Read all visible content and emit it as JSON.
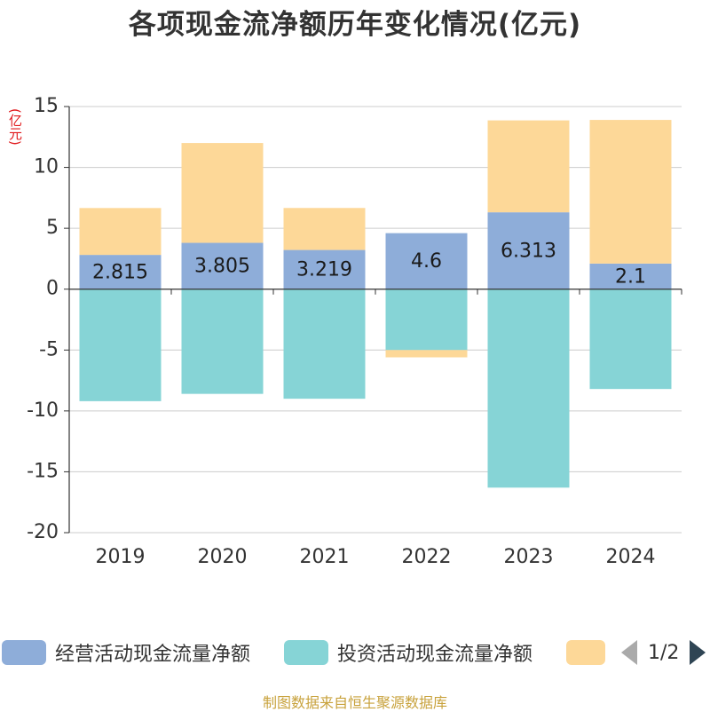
{
  "chart_data": {
    "type": "bar",
    "stacked": true,
    "title": "各项现金流净额历年变化情况(亿元)",
    "unit_label": "(亿元)",
    "categories": [
      "2019",
      "2020",
      "2021",
      "2022",
      "2023",
      "2024"
    ],
    "ylim": [
      -20,
      15
    ],
    "yticks": [
      15,
      10,
      5,
      0,
      -5,
      -10,
      -15,
      -20
    ],
    "grid": true,
    "legend_position": "bottom",
    "series": [
      {
        "name": "经营活动现金流量净额",
        "color": "#8eadd9",
        "values": [
          2.815,
          3.805,
          3.219,
          4.6,
          6.313,
          2.1
        ],
        "labels": [
          "2.815",
          "3.805",
          "3.219",
          "4.6",
          "6.313",
          "2.1"
        ]
      },
      {
        "name": "投资活动现金流量净额",
        "color": "#86d4d6",
        "values": [
          -9.2,
          -8.6,
          -9.0,
          -5.0,
          -16.3,
          -8.2
        ]
      },
      {
        "name": "",
        "color": "#fdd898",
        "values": [
          3.85,
          8.2,
          3.45,
          -0.6,
          7.55,
          11.8
        ]
      }
    ]
  },
  "legend": {
    "items": [
      {
        "label": "经营活动现金流量净额",
        "color": "#8eadd9"
      },
      {
        "label": "投资活动现金流量净额",
        "color": "#86d4d6"
      },
      {
        "label": "",
        "color": "#fdd898"
      }
    ],
    "page_indicator": "1/2",
    "prev_icon": "chevron-left-icon",
    "next_icon": "chevron-right-icon"
  },
  "footer": {
    "source": "制图数据来自恒生聚源数据库"
  }
}
